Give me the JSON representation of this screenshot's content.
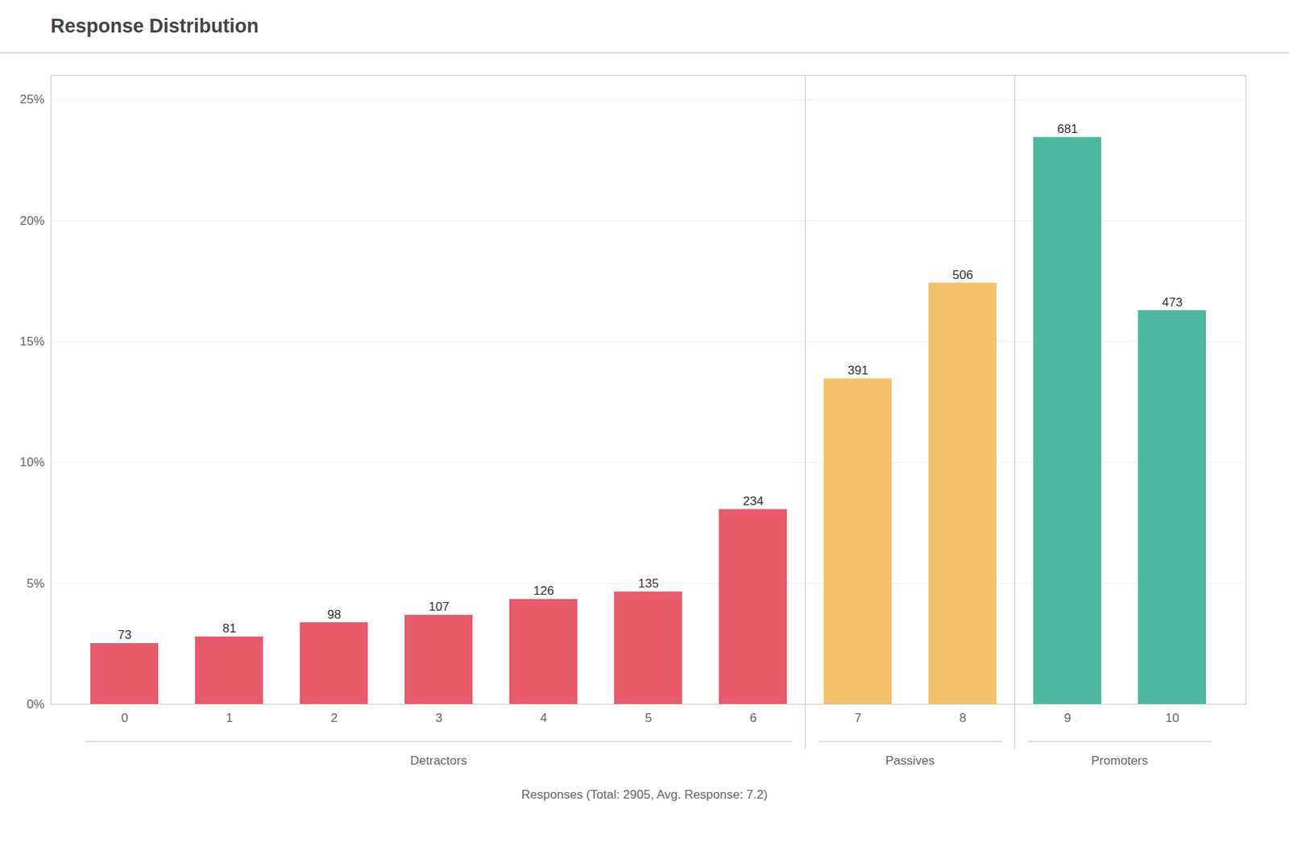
{
  "chart_data": {
    "type": "bar",
    "title": "Response Distribution",
    "xlabel": "Responses (Total: 2905, Avg. Response: 7.2)",
    "categories": [
      "0",
      "1",
      "2",
      "3",
      "4",
      "5",
      "6",
      "7",
      "8",
      "9",
      "10"
    ],
    "values": [
      0.025129,
      0.027883,
      0.033735,
      0.036833,
      0.043373,
      0.046472,
      0.080551,
      0.134596,
      0.174182,
      0.234423,
      0.162823
    ],
    "counts": [
      73,
      81,
      98,
      107,
      126,
      135,
      234,
      391,
      506,
      681,
      473
    ],
    "colors": [
      "#e8596a",
      "#e8596a",
      "#e8596a",
      "#e8596a",
      "#e8596a",
      "#e8596a",
      "#e8596a",
      "#f5c26b",
      "#f5c26b",
      "#4db89e",
      "#4db89e"
    ],
    "groups": [
      {
        "name": "Detractors",
        "from": "0",
        "to": "6"
      },
      {
        "name": "Passives",
        "from": "7",
        "to": "8"
      },
      {
        "name": "Promoters",
        "from": "9",
        "to": "10"
      }
    ],
    "ylim": [
      0,
      0.26
    ],
    "yticks": [
      {
        "value": 0.0,
        "label": "0%"
      },
      {
        "value": 0.05,
        "label": "5%"
      },
      {
        "value": 0.1,
        "label": "10%"
      },
      {
        "value": 0.15,
        "label": "15%"
      },
      {
        "value": 0.2,
        "label": "20%"
      },
      {
        "value": 0.25,
        "label": "25%"
      }
    ],
    "grid": true
  }
}
